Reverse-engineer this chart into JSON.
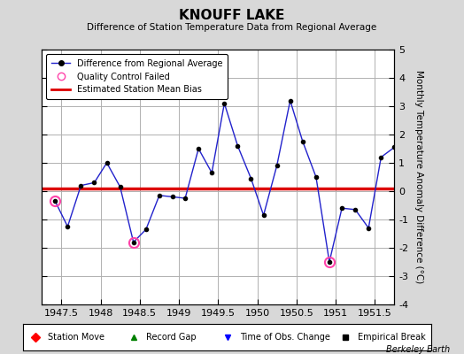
{
  "title": "KNOUFF LAKE",
  "subtitle": "Difference of Station Temperature Data from Regional Average",
  "ylabel": "Monthly Temperature Anomaly Difference (°C)",
  "xlabel_ticks": [
    1947.5,
    1948,
    1948.5,
    1949,
    1949.5,
    1950,
    1950.5,
    1951,
    1951.5
  ],
  "xlabel_labels": [
    "1947.5",
    "1948",
    "1948.5",
    "1949",
    "1949.5",
    "1950",
    "1950.5",
    "1951",
    "1951.5"
  ],
  "xlim": [
    1947.25,
    1951.75
  ],
  "ylim": [
    -4,
    5
  ],
  "yticks": [
    -4,
    -3,
    -2,
    -1,
    0,
    1,
    2,
    3,
    4,
    5
  ],
  "background_color": "#d8d8d8",
  "plot_bg_color": "#ffffff",
  "grid_color": "#b0b0b0",
  "bias_line_y": 0.08,
  "bias_line_color": "#dd0000",
  "line_color": "#2222cc",
  "marker_color": "#000000",
  "qc_fail_color": "#ff44aa",
  "x_data": [
    1947.42,
    1947.58,
    1947.75,
    1947.92,
    1948.08,
    1948.25,
    1948.42,
    1948.58,
    1948.75,
    1948.92,
    1949.08,
    1949.25,
    1949.42,
    1949.58,
    1949.75,
    1949.92,
    1950.08,
    1950.25,
    1950.42,
    1950.58,
    1950.75,
    1950.92,
    1951.08,
    1951.25,
    1951.42,
    1951.58,
    1951.75
  ],
  "y_data": [
    -0.35,
    -1.25,
    0.2,
    0.3,
    1.0,
    0.15,
    -1.8,
    -1.35,
    -0.15,
    -0.2,
    -0.25,
    1.5,
    0.65,
    3.1,
    1.6,
    0.45,
    -0.85,
    0.9,
    3.2,
    1.75,
    0.5,
    -2.5,
    -0.6,
    -0.65,
    -1.3,
    1.2,
    1.55
  ],
  "qc_fail_points": [
    [
      1947.42,
      -0.35
    ],
    [
      1948.42,
      -1.8
    ],
    [
      1950.92,
      -2.5
    ]
  ],
  "watermark": "Berkeley Earth"
}
